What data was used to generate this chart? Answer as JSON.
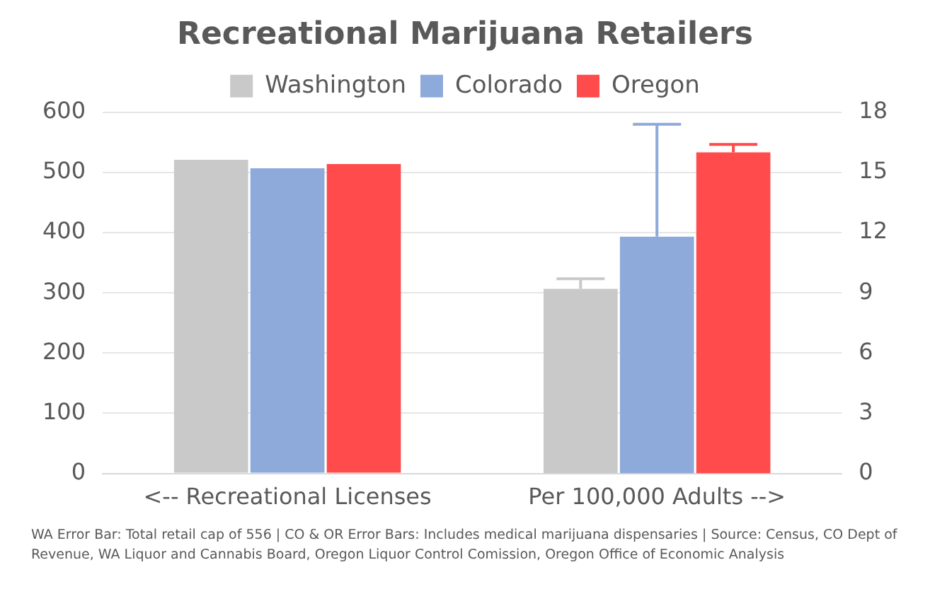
{
  "chart_data": {
    "type": "bar",
    "title": "Recreational Marijuana Retailers",
    "categories": [
      "<-- Recreational Licenses",
      "Per 100,000 Adults -->"
    ],
    "series": [
      {
        "name": "Washington",
        "color": "#c9c9c9",
        "values": [
          521,
          null
        ]
      },
      {
        "name": "Colorado",
        "color": "#8eaadb",
        "values": [
          507,
          null
        ]
      },
      {
        "name": "Oregon",
        "color": "#ff4b4b",
        "values": [
          514,
          null
        ]
      },
      {
        "color": "#c9c9c9",
        "axis": "y2",
        "values": [
          null,
          9.2
        ],
        "errors": [
          null,
          [
            9.2,
            9.7
          ]
        ]
      },
      {
        "color": "#8eaadb",
        "axis": "y2",
        "values": [
          null,
          11.8
        ],
        "errors": [
          null,
          [
            11.8,
            17.4
          ]
        ]
      },
      {
        "color": "#ff4b4b",
        "axis": "y2",
        "values": [
          null,
          16.0
        ],
        "errors": [
          null,
          [
            16.0,
            16.4
          ]
        ]
      }
    ],
    "ylim": [
      0,
      600
    ],
    "yticks": [
      0,
      100,
      200,
      300,
      400,
      500,
      600
    ],
    "y2lim": [
      0,
      18
    ],
    "y2ticks": [
      0,
      3,
      6,
      9,
      12,
      15,
      18
    ],
    "grid": "y",
    "legend": "top",
    "annotations": [
      "WA Error Bar: Total retail cap of 556  |  CO & OR Error Bars: Includes medical marijuana dispensaries  |  Source: Census, CO Dept of Revenue, WA Liquor and Cannabis Board, Oregon Liquor Control Comission, Oregon Office of Economic Analysis"
    ]
  }
}
